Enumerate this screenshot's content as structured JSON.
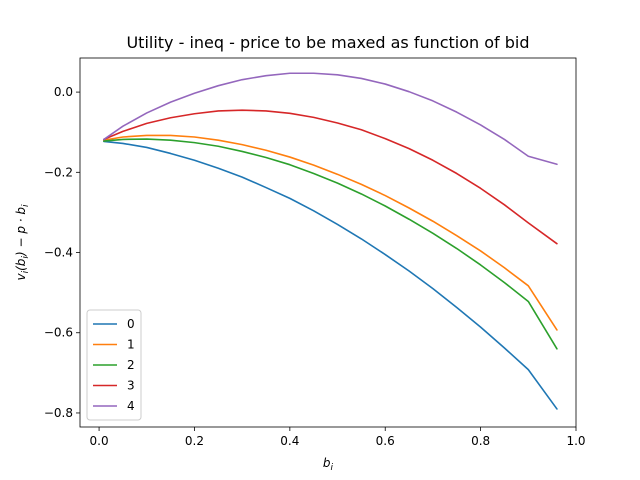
{
  "chart_data": {
    "type": "line",
    "title": "Utility - ineq - price to be maxed as function of bid",
    "xlabel": "b_i",
    "ylabel": "v_i(b_i) − p·b_i",
    "xlim": [
      -0.04,
      1.0
    ],
    "ylim": [
      -0.835,
      0.085
    ],
    "xticks": [
      0.0,
      0.2,
      0.4,
      0.6,
      0.8,
      1.0
    ],
    "xtick_labels": [
      "0.0",
      "0.2",
      "0.4",
      "0.6",
      "0.8",
      "1.0"
    ],
    "yticks": [
      0.0,
      -0.2,
      -0.4,
      -0.6,
      -0.8
    ],
    "ytick_labels": [
      "0.0",
      "−0.2",
      "−0.4",
      "−0.6",
      "−0.8"
    ],
    "grid": false,
    "legend_position": "lower-left",
    "x": [
      0.01,
      0.05,
      0.1,
      0.15,
      0.2,
      0.25,
      0.3,
      0.35,
      0.4,
      0.45,
      0.5,
      0.55,
      0.6,
      0.65,
      0.7,
      0.75,
      0.8,
      0.85,
      0.9,
      0.96
    ],
    "series": [
      {
        "name": "0",
        "color": "#1f77b4",
        "values": [
          -0.123,
          -0.128,
          -0.138,
          -0.153,
          -0.17,
          -0.19,
          -0.212,
          -0.238,
          -0.265,
          -0.296,
          -0.33,
          -0.366,
          -0.405,
          -0.446,
          -0.49,
          -0.537,
          -0.586,
          -0.638,
          -0.692,
          -0.79
        ]
      },
      {
        "name": "1",
        "color": "#ff7f0e",
        "values": [
          -0.12,
          -0.112,
          -0.108,
          -0.108,
          -0.112,
          -0.12,
          -0.131,
          -0.145,
          -0.162,
          -0.182,
          -0.205,
          -0.23,
          -0.258,
          -0.289,
          -0.322,
          -0.358,
          -0.396,
          -0.438,
          -0.483,
          -0.593
        ]
      },
      {
        "name": "2",
        "color": "#2ca02c",
        "values": [
          -0.122,
          -0.118,
          -0.117,
          -0.12,
          -0.126,
          -0.135,
          -0.148,
          -0.163,
          -0.181,
          -0.203,
          -0.227,
          -0.254,
          -0.284,
          -0.317,
          -0.352,
          -0.39,
          -0.431,
          -0.475,
          -0.522,
          -0.64
        ]
      },
      {
        "name": "3",
        "color": "#d62728",
        "values": [
          -0.118,
          -0.098,
          -0.078,
          -0.064,
          -0.054,
          -0.047,
          -0.045,
          -0.047,
          -0.053,
          -0.063,
          -0.077,
          -0.094,
          -0.116,
          -0.141,
          -0.17,
          -0.203,
          -0.24,
          -0.281,
          -0.326,
          -0.378
        ]
      },
      {
        "name": "4",
        "color": "#9467bd",
        "values": [
          -0.118,
          -0.085,
          -0.052,
          -0.025,
          -0.003,
          0.016,
          0.031,
          0.041,
          0.047,
          0.047,
          0.043,
          0.034,
          0.02,
          0.001,
          -0.022,
          -0.05,
          -0.082,
          -0.118,
          -0.16,
          -0.18
        ]
      }
    ]
  }
}
